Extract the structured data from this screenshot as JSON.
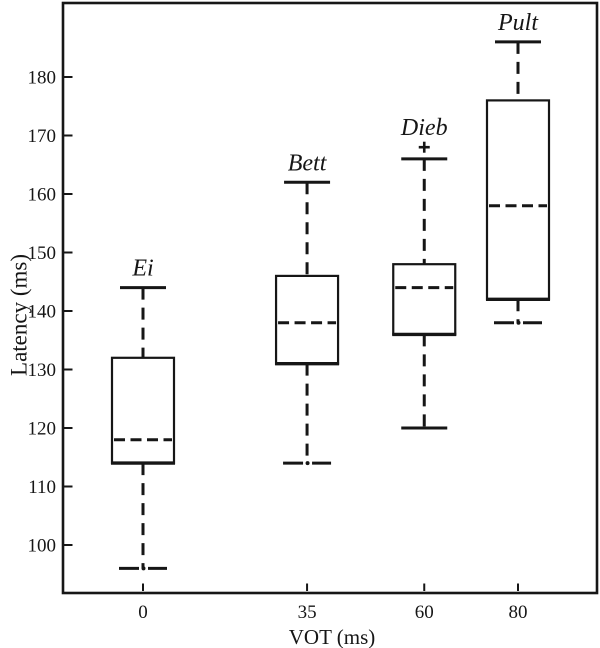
{
  "chart_data": {
    "type": "boxplot",
    "title": "",
    "xlabel": "VOT (ms)",
    "ylabel": "Latency (ms)",
    "x_ticks": [
      0,
      35,
      60,
      80
    ],
    "y_ticks": [
      180,
      170,
      160,
      150,
      140,
      130,
      120,
      110,
      100
    ],
    "ylim": [
      91,
      193
    ],
    "grid": false,
    "legend": "none",
    "series": [
      {
        "label": "Ei",
        "vot": 0,
        "whisker_low": 96,
        "q1": 114,
        "median": 118,
        "q3": 132,
        "whisker_high": 144,
        "outliers": [],
        "lower_cap_style": "dashdot"
      },
      {
        "label": "Bett",
        "vot": 35,
        "whisker_low": 114,
        "q1": 131,
        "median": 138,
        "q3": 146,
        "whisker_high": 162,
        "outliers": [],
        "lower_cap_style": "dashdot"
      },
      {
        "label": "Dieb",
        "vot": 60,
        "whisker_low": 120,
        "q1": 136,
        "median": 144,
        "q3": 148,
        "whisker_high": 166,
        "outliers": [
          168
        ],
        "lower_cap_style": "solid"
      },
      {
        "label": "Pult",
        "vot": 80,
        "whisker_low": 138,
        "q1": 142,
        "median": 158,
        "q3": 176,
        "whisker_high": 186,
        "outliers": [],
        "lower_cap_style": "dashdot"
      }
    ],
    "colors": {
      "ink": "#161616",
      "background": "#ffffff"
    }
  }
}
